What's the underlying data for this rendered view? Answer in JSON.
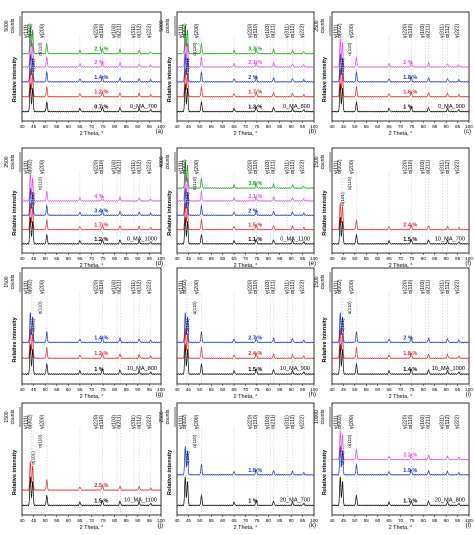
{
  "figure": {
    "x_axis_label": "2 Theta, °",
    "y_axis_label": "Relative intensity",
    "units_label": "counts",
    "x_ticks": [
      "40",
      "45",
      "50",
      "55",
      "60",
      "65",
      "70",
      "75",
      "80",
      "85",
      "90",
      "95",
      "100"
    ]
  },
  "chart_data": [
    {
      "type": "line",
      "panel": "(a)",
      "sample": "0_MA_700",
      "scale_value": "5000",
      "xlim": [
        40,
        100
      ],
      "xlabel": "2 Theta, °",
      "ylabel": "Relative intensity",
      "peaks_top": [
        "γ(111)",
        "α(002)",
        "γ(200)",
        "γ(220)",
        "α(110)",
        "γ(103)",
        "α(211)",
        "γ(311)",
        "α(112)",
        "γ(222)"
      ],
      "peaks_inner": [
        "α(101)",
        "α(110)"
      ],
      "series": [
        {
          "name": "0.7 %",
          "color": "#000000"
        },
        {
          "name": "1.2 %",
          "color": "#e8262a"
        },
        {
          "name": "1.4 %",
          "color": "#1a33c8"
        },
        {
          "name": "2 %",
          "color": "#e14be6"
        },
        {
          "name": "2.1 %",
          "color": "#1aa21a"
        }
      ]
    },
    {
      "type": "line",
      "panel": "(b)",
      "sample": "0_MA_800",
      "scale_value": "5000",
      "xlim": [
        40,
        100
      ],
      "xlabel": "2 Theta, °",
      "ylabel": "Relative intensity",
      "peaks_top": [
        "γ(111)",
        "α(002)",
        "γ(200)",
        "γ(220)",
        "α(110)",
        "γ(103)",
        "α(211)",
        "γ(311)",
        "α(112)",
        "γ(222)"
      ],
      "peaks_inner": [
        "α(101)",
        "α(110)"
      ],
      "series": [
        {
          "name": "1.3 %",
          "color": "#000000"
        },
        {
          "name": "1.7 %",
          "color": "#e8262a"
        },
        {
          "name": "2 %",
          "color": "#1a33c8"
        },
        {
          "name": "2.1 %",
          "color": "#e14be6"
        },
        {
          "name": "3.3 %",
          "color": "#1aa21a"
        }
      ]
    },
    {
      "type": "line",
      "panel": "(c)",
      "sample": "0_MA_900",
      "scale_value": "2500",
      "xlim": [
        40,
        100
      ],
      "xlabel": "2 Theta, °",
      "ylabel": "Relative intensity",
      "peaks_top": [
        "γ(111)",
        "α(002)",
        "γ(200)",
        "γ(220)",
        "α(110)",
        "γ(103)",
        "α(211)",
        "γ(311)",
        "α(112)",
        "γ(222)"
      ],
      "peaks_inner": [
        "α(101)",
        "α(110)"
      ],
      "series": [
        {
          "name": "1 %",
          "color": "#000000"
        },
        {
          "name": "1.6 %",
          "color": "#e8262a"
        },
        {
          "name": "1.8 %",
          "color": "#1a33c8"
        },
        {
          "name": "2 %",
          "color": "#e14be6"
        }
      ]
    },
    {
      "type": "line",
      "panel": "(d)",
      "sample": "0_MA_1000",
      "scale_value": "2500",
      "xlim": [
        40,
        100
      ],
      "xlabel": "2 Theta, °",
      "ylabel": "Relative intensity",
      "peaks_top": [
        "γ(111)",
        "α(002)",
        "γ(200)",
        "γ(220)",
        "α(110)",
        "γ(103)",
        "α(211)",
        "γ(311)",
        "α(112)",
        "γ(222)"
      ],
      "peaks_inner": [
        "α(101)",
        "α(110)"
      ],
      "series": [
        {
          "name": "1.2 %",
          "color": "#000000"
        },
        {
          "name": "1.7 %",
          "color": "#e8262a"
        },
        {
          "name": "3.4 %",
          "color": "#1a33c8"
        },
        {
          "name": "4 %",
          "color": "#e14be6"
        }
      ]
    },
    {
      "type": "line",
      "panel": "(e)",
      "sample": "0_MA_1100",
      "scale_value": "4000",
      "xlim": [
        40,
        100
      ],
      "xlabel": "2 Theta, °",
      "ylabel": "Relative intensity",
      "peaks_top": [
        "γ(111)",
        "α(002)",
        "γ(200)",
        "γ(220)",
        "α(110)",
        "γ(103)",
        "α(211)",
        "γ(311)",
        "α(112)",
        "γ(222)"
      ],
      "peaks_inner": [
        "α(101)",
        "α(110)"
      ],
      "series": [
        {
          "name": "1.1 %",
          "color": "#000000"
        },
        {
          "name": "1.5 %",
          "color": "#e8262a"
        },
        {
          "name": "2 %",
          "color": "#1a33c8"
        },
        {
          "name": "2.1 %",
          "color": "#e14be6"
        },
        {
          "name": "3.8 %",
          "color": "#1aa21a"
        }
      ]
    },
    {
      "type": "line",
      "panel": "(f)",
      "sample": "10_MA_700",
      "scale_value": "1500",
      "xlim": [
        40,
        100
      ],
      "xlabel": "2 Theta, °",
      "ylabel": "Relative intensity",
      "peaks_top": [
        "γ(111)",
        "α(002)",
        "γ(200)",
        "γ(220)",
        "α(110)",
        "γ(103)",
        "α(211)",
        "γ(311)",
        "α(112)",
        "γ(222)"
      ],
      "peaks_inner": [
        "α(101)",
        "α(110)"
      ],
      "series": [
        {
          "name": "1.5 %",
          "color": "#000000"
        },
        {
          "name": "2.4 %",
          "color": "#e8262a"
        }
      ]
    },
    {
      "type": "line",
      "panel": "(g)",
      "sample": "10_MA_800",
      "scale_value": "1500",
      "xlim": [
        40,
        100
      ],
      "xlabel": "2 Theta, °",
      "ylabel": "Relative intensity",
      "peaks_top": [
        "γ(111)",
        "α(002)",
        "γ(200)",
        "γ(220)",
        "α(110)",
        "γ(103)",
        "α(211)",
        "γ(311)",
        "α(112)",
        "γ(222)"
      ],
      "peaks_inner": [
        "α(101)",
        "α(110)"
      ],
      "series": [
        {
          "name": "1 %",
          "color": "#000000"
        },
        {
          "name": "1.2 %",
          "color": "#e8262a"
        },
        {
          "name": "1.4 %",
          "color": "#1a33c8"
        }
      ]
    },
    {
      "type": "line",
      "panel": "(h)",
      "sample": "10_MA_900",
      "scale_value": "",
      "xlim": [
        40,
        100
      ],
      "xlabel": "2 Theta, °",
      "ylabel": "",
      "peaks_top": [
        "γ(111)",
        "α(002)",
        "γ(200)",
        "γ(220)",
        "α(110)",
        "γ(103)",
        "α(211)",
        "γ(311)",
        "α(112)",
        "γ(222)"
      ],
      "peaks_inner": [
        "α(101)",
        "α(110)"
      ],
      "series": [
        {
          "name": "1.5 %",
          "color": "#000000"
        },
        {
          "name": "2.4 %",
          "color": "#e8262a"
        },
        {
          "name": "2.7 %",
          "color": "#1a33c8"
        }
      ]
    },
    {
      "type": "line",
      "panel": "(i)",
      "sample": "10_MA_1000",
      "scale_value": "1500",
      "xlim": [
        40,
        100
      ],
      "xlabel": "2 Theta, °",
      "ylabel": "Relative intensity",
      "peaks_top": [
        "γ(111)",
        "α(002)",
        "γ(200)",
        "γ(220)",
        "α(110)",
        "γ(103)",
        "α(211)",
        "γ(311)",
        "α(112)",
        "γ(222)"
      ],
      "peaks_inner": [
        "α(101)",
        "α(110)"
      ],
      "series": [
        {
          "name": "1.4 %",
          "color": "#000000"
        },
        {
          "name": "1.8 %",
          "color": "#e8262a"
        },
        {
          "name": "2 %",
          "color": "#1a33c8"
        }
      ]
    },
    {
      "type": "line",
      "panel": "(j)",
      "sample": "10_MA_1100",
      "scale_value": "1500",
      "xlim": [
        40,
        100
      ],
      "xlabel": "2 Theta, °",
      "ylabel": "Relative intensity",
      "peaks_top": [
        "γ(111)",
        "α(002)",
        "γ(200)",
        "γ(220)",
        "α(110)",
        "γ(103)",
        "α(211)",
        "γ(311)",
        "α(112)",
        "γ(222)"
      ],
      "peaks_inner": [
        "α(101)",
        "α(110)"
      ],
      "series": [
        {
          "name": "1.5 %",
          "color": "#000000"
        },
        {
          "name": "2.5 %",
          "color": "#e8262a"
        }
      ]
    },
    {
      "type": "line",
      "panel": "(k)",
      "sample": "20_MA_700",
      "scale_value": "2500",
      "xlim": [
        40,
        100
      ],
      "xlabel": "2 Theta, °",
      "ylabel": "Relative intensity",
      "peaks_top": [
        "γ(111)",
        "α(002)",
        "γ(200)",
        "γ(220)",
        "α(110)",
        "γ(103)",
        "α(211)",
        "γ(311)",
        "α(112)",
        "γ(222)"
      ],
      "peaks_inner": [
        "α(101)",
        "α(110)"
      ],
      "series": [
        {
          "name": "1 %",
          "color": "#000000"
        },
        {
          "name": "1.8 %",
          "color": "#1a33c8"
        }
      ]
    },
    {
      "type": "line",
      "panel": "(l)",
      "sample": "20_MA_800",
      "scale_value": "10000",
      "xlim": [
        40,
        100
      ],
      "xlabel": "2 Theta, °",
      "ylabel": "Relative intensity",
      "peaks_top": [
        "γ(111)",
        "α(002)",
        "γ(200)",
        "γ(220)",
        "α(110)",
        "γ(103)",
        "α(211)",
        "γ(311)",
        "α(112)",
        "γ(222)"
      ],
      "peaks_inner": [
        "α(101)",
        "α(110)"
      ],
      "series": [
        {
          "name": "1.7 %",
          "color": "#000000"
        },
        {
          "name": "1.9 %",
          "color": "#1a33c8"
        },
        {
          "name": "2.2 %",
          "color": "#e14be6"
        }
      ]
    }
  ]
}
